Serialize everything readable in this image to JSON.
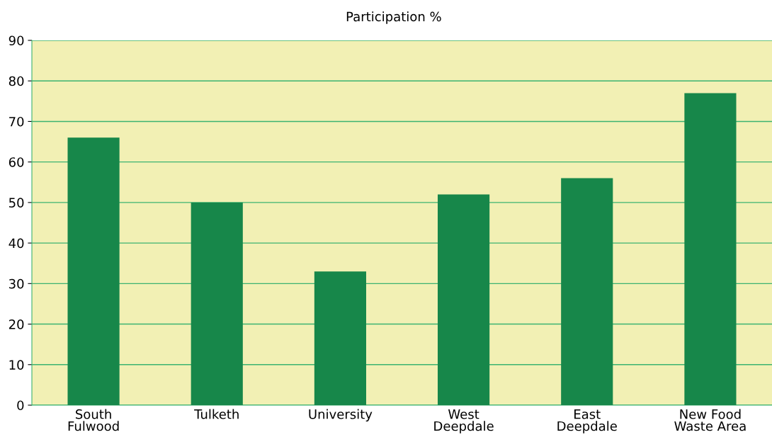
{
  "chart_data": {
    "type": "bar",
    "title": "Participation %",
    "categories": [
      "South\nFulwood",
      "Tulketh",
      "University",
      "West\nDeepdale",
      "East\nDeepdale",
      "New Food\nWaste Area"
    ],
    "values": [
      66,
      50,
      33,
      52,
      56,
      77
    ],
    "color": "#17874a",
    "ylim": [
      0,
      90
    ],
    "yticks": [
      0,
      10,
      20,
      30,
      40,
      50,
      60,
      70,
      80,
      90
    ],
    "grid": "y"
  }
}
